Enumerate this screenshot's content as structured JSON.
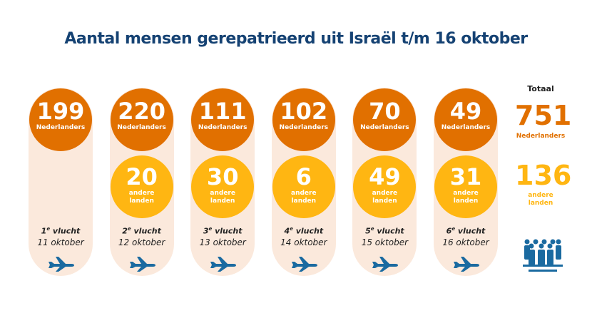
{
  "title": "Aantal mensen gerepatrieerd uit Israël t/m 16 oktober",
  "colors": {
    "nederlanders": "#e17000",
    "andere": "#ffb612",
    "blue": "#1a6aa0",
    "bg": "#fbe9dc"
  },
  "flights": [
    {
      "n": "1",
      "sup": "e",
      "vlucht": "vlucht",
      "date": "11 oktober",
      "nl": "199",
      "nl_label": "Nederlanders",
      "other": null,
      "other_label": null
    },
    {
      "n": "2",
      "sup": "e",
      "vlucht": "vlucht",
      "date": "12 oktober",
      "nl": "220",
      "nl_label": "Nederlanders",
      "other": "20",
      "other_label": "andere landen"
    },
    {
      "n": "3",
      "sup": "e",
      "vlucht": "vlucht",
      "date": "13 oktober",
      "nl": "111",
      "nl_label": "Nederlanders",
      "other": "30",
      "other_label": "andere landen"
    },
    {
      "n": "4",
      "sup": "e",
      "vlucht": "vlucht",
      "date": "14 oktober",
      "nl": "102",
      "nl_label": "Nederlanders",
      "other": "6",
      "other_label": "andere landen"
    },
    {
      "n": "5",
      "sup": "e",
      "vlucht": "vlucht",
      "date": "15 oktober",
      "nl": "70",
      "nl_label": "Nederlanders",
      "other": "49",
      "other_label": "andere landen"
    },
    {
      "n": "6",
      "sup": "e",
      "vlucht": "vlucht",
      "date": "16 oktober",
      "nl": "49",
      "nl_label": "Nederlanders",
      "other": "31",
      "other_label": "andere landen"
    }
  ],
  "total": {
    "heading": "Totaal",
    "nl": "751",
    "nl_label": "Nederlanders",
    "other": "136",
    "other_label": "andere landen"
  },
  "icons": {
    "flight": "airplane-icon",
    "total": "group-of-people-icon"
  }
}
